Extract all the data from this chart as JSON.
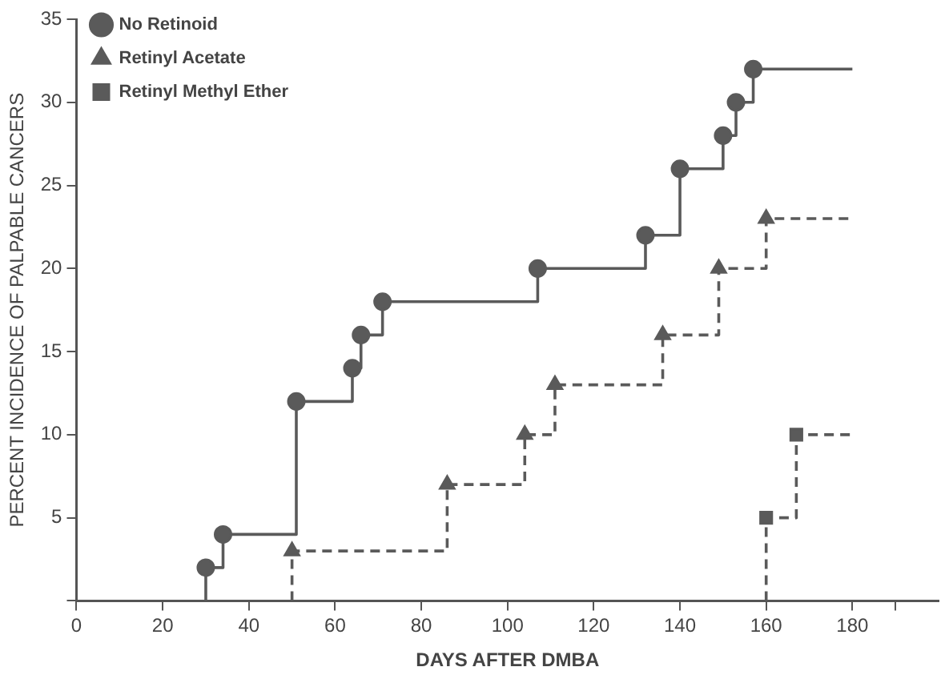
{
  "chart_data": {
    "type": "step",
    "xlabel": "DAYS AFTER DMBA",
    "ylabel": "PERCENT INCIDENCE OF PALPABLE CANCERS",
    "xlim": [
      0,
      200
    ],
    "xticks": [
      0,
      20,
      40,
      60,
      80,
      100,
      120,
      140,
      160,
      180,
      {
        "value": 190,
        "label": null
      }
    ],
    "ylim": [
      0,
      35
    ],
    "yticks": [
      {
        "value": 0,
        "label": null
      },
      5,
      10,
      15,
      20,
      25,
      30,
      35
    ],
    "grid": false,
    "legend": "top left",
    "series": [
      {
        "name": "No Retinoid",
        "color": "#5a5a5a",
        "marker": "circle",
        "line_style": "solid",
        "x": [
          30,
          30,
          34,
          51,
          64,
          66,
          71,
          107,
          132,
          140,
          150,
          153,
          157,
          180
        ],
        "values": [
          0,
          2,
          4,
          12,
          14,
          16,
          18,
          20,
          22,
          26,
          28,
          30,
          32,
          32
        ]
      },
      {
        "name": "Retinyl Acetate",
        "color": "#5a5a5a",
        "marker": "triangle",
        "line_style": "dashed",
        "x": [
          50,
          50,
          86,
          104,
          111,
          136,
          149,
          160,
          180
        ],
        "values": [
          0,
          3,
          7,
          10,
          13,
          16,
          20,
          23,
          23
        ]
      },
      {
        "name": "Retinyl Methyl Ether",
        "color": "#5a5a5a",
        "marker": "square",
        "line_style": "dashed",
        "x": [
          160,
          160,
          167,
          180
        ],
        "values": [
          0,
          5,
          10,
          10
        ]
      }
    ]
  }
}
